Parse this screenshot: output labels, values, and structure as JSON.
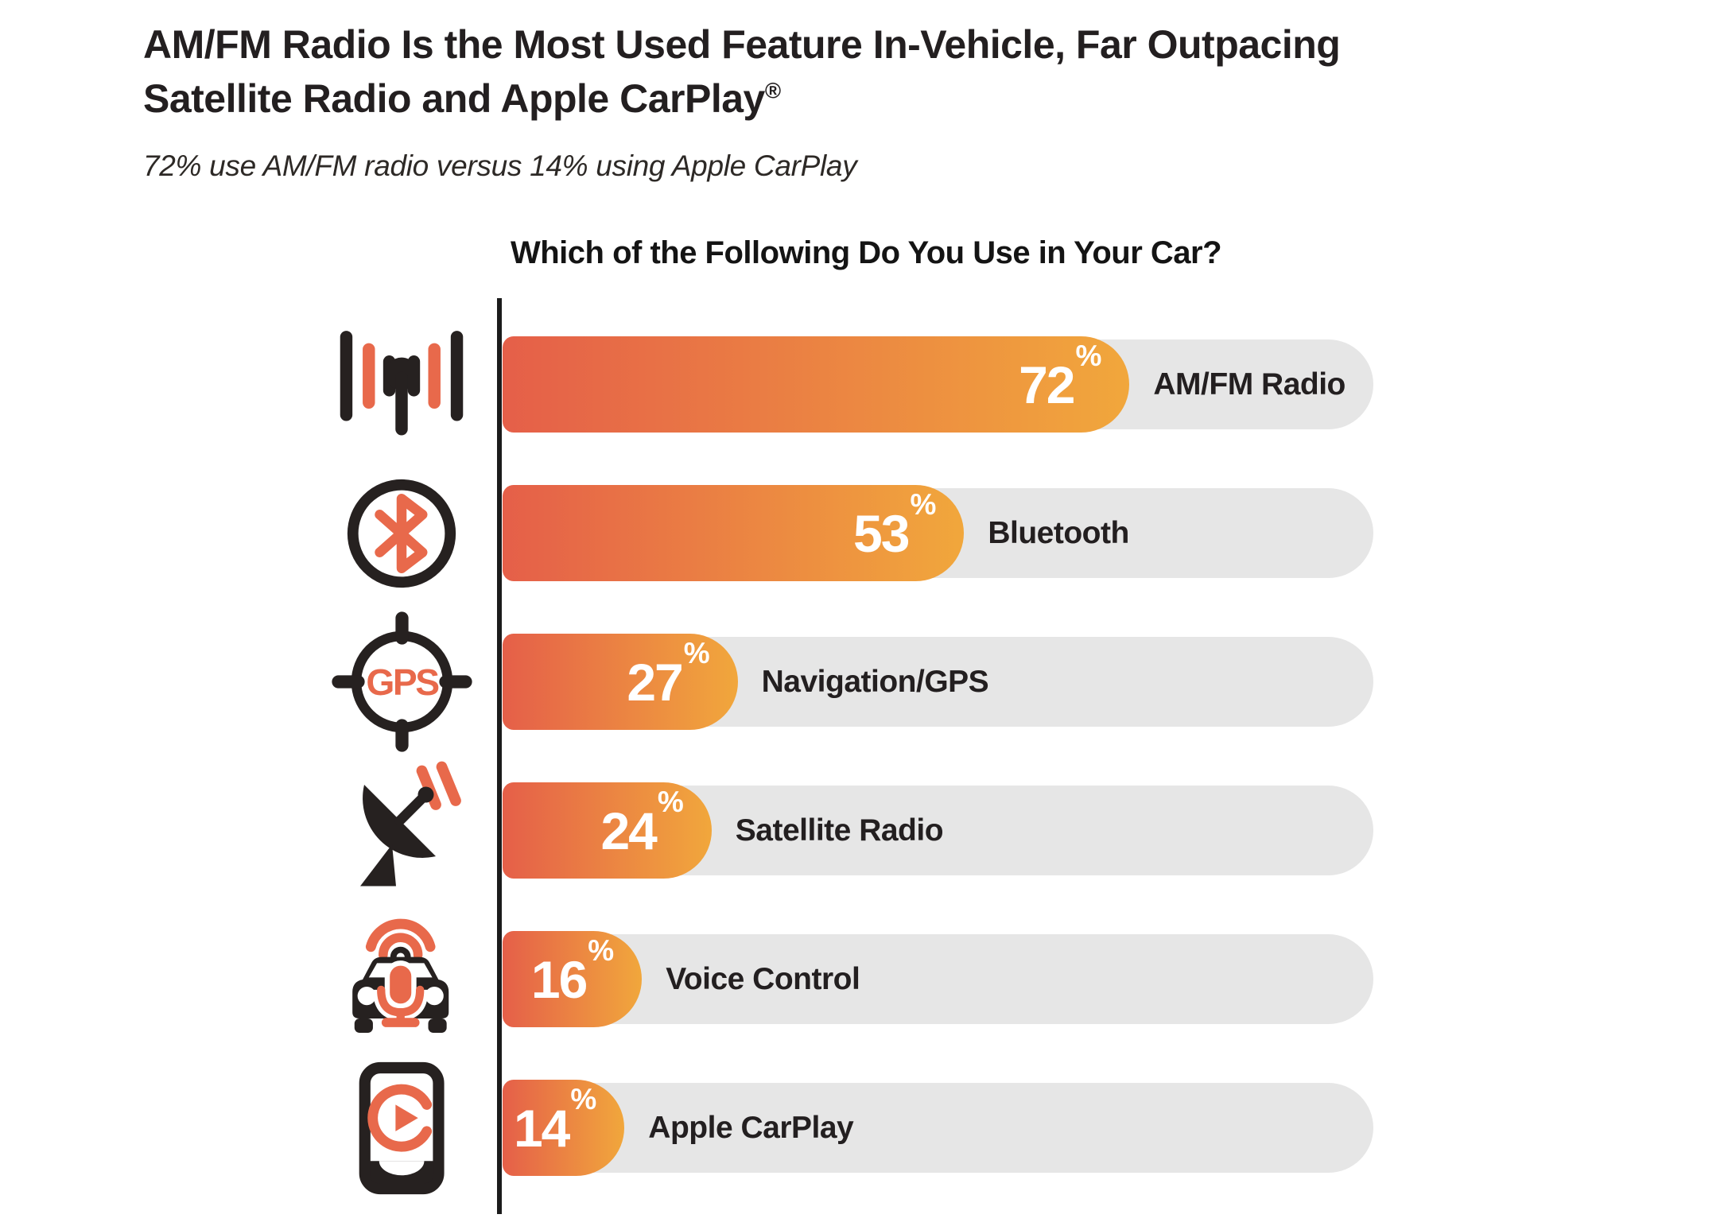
{
  "header": {
    "title_line1": "AM/FM Radio Is the Most Used Feature In-Vehicle, Far Outpacing",
    "title_line2": "Satellite Radio and Apple CarPlay",
    "registered_mark": "®",
    "subtitle": "72% use AM/FM radio versus 14% using Apple CarPlay"
  },
  "chart_data": {
    "type": "bar",
    "orientation": "horizontal",
    "title": "Which of the Following Do You Use in Your Car?",
    "categories": [
      "AM/FM Radio",
      "Bluetooth",
      "Navigation/GPS",
      "Satellite Radio",
      "Voice Control",
      "Apple CarPlay"
    ],
    "values": [
      72,
      53,
      27,
      24,
      16,
      14
    ],
    "unit": "%",
    "xlim": [
      0,
      100
    ],
    "grid": false,
    "value_label_position": "inside-end",
    "legend": "none",
    "icons": [
      "radio-antenna-icon",
      "bluetooth-icon",
      "gps-crosshair-icon",
      "satellite-dish-icon",
      "car-voice-control-icon",
      "carplay-phone-icon"
    ]
  },
  "colors": {
    "bar_gradient_start": "#E55F49",
    "bar_gradient_end": "#F1A73C",
    "bar_track": "#E6E6E6",
    "icon_orange": "#E8694B",
    "icon_black": "#262120",
    "text_dark": "#231F20",
    "axis_line": "#1B1B1B",
    "value_text": "#FFFFFF",
    "background": "#FFFFFF"
  }
}
